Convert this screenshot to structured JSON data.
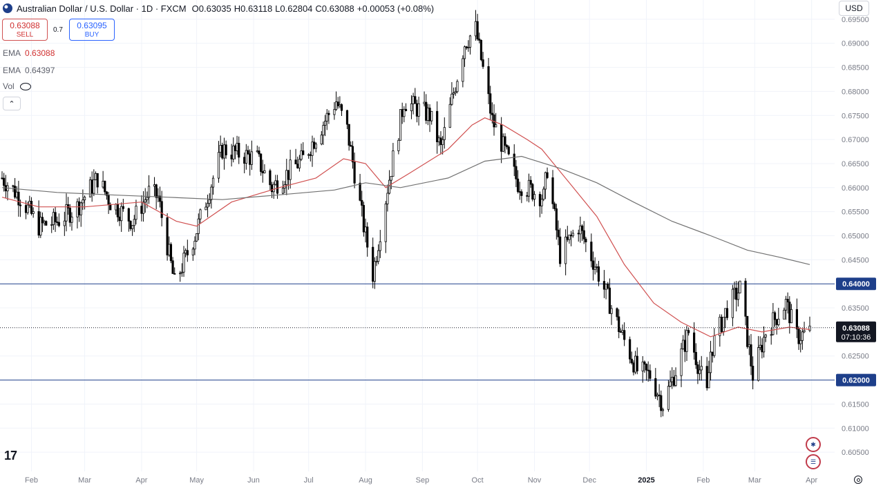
{
  "header": {
    "title": "Australian Dollar / U.S. Dollar · 1D · FXCM",
    "open_label": "O",
    "open": "0.63035",
    "high_label": "H",
    "high": "0.63118",
    "low_label": "L",
    "low": "0.62804",
    "close_label": "C",
    "close": "0.63088",
    "change": "+0.00053 (+0.08%)"
  },
  "trade": {
    "sell_price": "0.63088",
    "sell_label": "SELL",
    "spread": "0.7",
    "buy_price": "0.63095",
    "buy_label": "BUY"
  },
  "indicators": {
    "ema1_label": "EMA",
    "ema1_value": "0.63088",
    "ema2_label": "EMA",
    "ema2_value": "0.64397",
    "vol_label": "Vol"
  },
  "currency_button": "USD",
  "colors": {
    "candle": "#000000",
    "ema_fast": "#d05050",
    "ema_slow": "#707070",
    "hline": "#1e3f8a",
    "grid": "#f0f3fa",
    "axis_text": "#787b86",
    "label_bg": "#1e3f8a",
    "last_bg": "#131722"
  },
  "icons": [
    "tradingview-logo-icon",
    "settings-gear-icon",
    "au-flag-icon",
    "us-flag-icon",
    "eye-off-icon",
    "collapse-chevron-icon"
  ],
  "chart_data": {
    "type": "candlestick",
    "x_range": [
      "2024-01-16",
      "2025-03-31"
    ],
    "x_ticks": [
      {
        "date": "2024-02-01",
        "label": "Feb"
      },
      {
        "date": "2024-03-01",
        "label": "Mar"
      },
      {
        "date": "2024-04-01",
        "label": "Apr"
      },
      {
        "date": "2024-05-01",
        "label": "May"
      },
      {
        "date": "2024-06-01",
        "label": "Jun"
      },
      {
        "date": "2024-07-01",
        "label": "Jul"
      },
      {
        "date": "2024-08-01",
        "label": "Aug"
      },
      {
        "date": "2024-09-01",
        "label": "Sep"
      },
      {
        "date": "2024-10-01",
        "label": "Oct"
      },
      {
        "date": "2024-11-01",
        "label": "Nov"
      },
      {
        "date": "2024-12-01",
        "label": "Dec"
      },
      {
        "date": "2025-01-01",
        "label": "2025"
      },
      {
        "date": "2025-02-01",
        "label": "Feb"
      },
      {
        "date": "2025-03-01",
        "label": "Mar"
      },
      {
        "date": "2025-04-01",
        "label": "Apr"
      }
    ],
    "ylim": [
      0.601,
      0.699
    ],
    "y_ticks": [
      "0.69500",
      "0.69000",
      "0.68500",
      "0.68000",
      "0.67500",
      "0.67000",
      "0.66500",
      "0.66000",
      "0.65500",
      "0.65000",
      "0.64500",
      "0.63500",
      "0.62500",
      "0.61500",
      "0.61000",
      "0.60500"
    ],
    "horizontal_lines": [
      {
        "value": 0.64,
        "label": "0.64000"
      },
      {
        "value": 0.62,
        "label": "0.62000"
      }
    ],
    "last_price": {
      "value": 0.63088,
      "label": "0.63088",
      "countdown": "07:10:36"
    },
    "price_path": [
      [
        "2024-01-16",
        0.662
      ],
      [
        "2024-01-26",
        0.658
      ],
      [
        "2024-02-05",
        0.652
      ],
      [
        "2024-02-15",
        0.653
      ],
      [
        "2024-02-26",
        0.656
      ],
      [
        "2024-03-08",
        0.662
      ],
      [
        "2024-03-15",
        0.657
      ],
      [
        "2024-03-27",
        0.653
      ],
      [
        "2024-04-05",
        0.659
      ],
      [
        "2024-04-10",
        0.658
      ],
      [
        "2024-04-19",
        0.64
      ],
      [
        "2024-04-30",
        0.65
      ],
      [
        "2024-05-15",
        0.668
      ],
      [
        "2024-06-03",
        0.666
      ],
      [
        "2024-06-11",
        0.66
      ],
      [
        "2024-06-28",
        0.666
      ],
      [
        "2024-07-10",
        0.674
      ],
      [
        "2024-07-16",
        0.678
      ],
      [
        "2024-07-22",
        0.672
      ],
      [
        "2024-07-31",
        0.652
      ],
      [
        "2024-08-05",
        0.642
      ],
      [
        "2024-08-13",
        0.66
      ],
      [
        "2024-08-22",
        0.678
      ],
      [
        "2024-09-05",
        0.675
      ],
      [
        "2024-09-11",
        0.668
      ],
      [
        "2024-09-24",
        0.69
      ],
      [
        "2024-09-30",
        0.693
      ],
      [
        "2024-10-09",
        0.674
      ],
      [
        "2024-10-23",
        0.661
      ],
      [
        "2024-11-06",
        0.658
      ],
      [
        "2024-11-08",
        0.664
      ],
      [
        "2024-11-15",
        0.646
      ],
      [
        "2024-11-25",
        0.652
      ],
      [
        "2024-12-05",
        0.643
      ],
      [
        "2024-12-18",
        0.63
      ],
      [
        "2024-12-27",
        0.622
      ],
      [
        "2025-01-03",
        0.621
      ],
      [
        "2025-01-10",
        0.615
      ],
      [
        "2025-01-17",
        0.622
      ],
      [
        "2025-01-24",
        0.63
      ],
      [
        "2025-02-03",
        0.617
      ],
      [
        "2025-02-05",
        0.626
      ],
      [
        "2025-02-14",
        0.635
      ],
      [
        "2025-02-21",
        0.639
      ],
      [
        "2025-02-28",
        0.621
      ],
      [
        "2025-03-07",
        0.63
      ],
      [
        "2025-03-18",
        0.636
      ],
      [
        "2025-03-24",
        0.629
      ],
      [
        "2025-03-31",
        0.63
      ]
    ],
    "series": [
      {
        "name": "EMA 0.63088",
        "points": [
          [
            "2024-01-16",
            0.658
          ],
          [
            "2024-02-05",
            0.656
          ],
          [
            "2024-03-01",
            0.656
          ],
          [
            "2024-04-01",
            0.657
          ],
          [
            "2024-04-20",
            0.653
          ],
          [
            "2024-05-01",
            0.652
          ],
          [
            "2024-05-20",
            0.657
          ],
          [
            "2024-06-15",
            0.66
          ],
          [
            "2024-07-05",
            0.662
          ],
          [
            "2024-07-20",
            0.666
          ],
          [
            "2024-08-01",
            0.665
          ],
          [
            "2024-08-12",
            0.66
          ],
          [
            "2024-08-25",
            0.663
          ],
          [
            "2024-09-15",
            0.668
          ],
          [
            "2024-09-28",
            0.673
          ],
          [
            "2024-10-05",
            0.6745
          ],
          [
            "2024-10-15",
            0.673
          ],
          [
            "2024-10-28",
            0.67
          ],
          [
            "2024-11-05",
            0.668
          ],
          [
            "2024-11-20",
            0.661
          ],
          [
            "2024-12-05",
            0.654
          ],
          [
            "2024-12-20",
            0.644
          ],
          [
            "2025-01-05",
            0.636
          ],
          [
            "2025-01-20",
            0.632
          ],
          [
            "2025-02-05",
            0.629
          ],
          [
            "2025-02-20",
            0.631
          ],
          [
            "2025-03-05",
            0.63
          ],
          [
            "2025-03-20",
            0.631
          ],
          [
            "2025-03-31",
            0.6305
          ]
        ]
      },
      {
        "name": "EMA 0.64397",
        "points": [
          [
            "2024-01-16",
            0.66
          ],
          [
            "2024-02-15",
            0.659
          ],
          [
            "2024-03-15",
            0.6585
          ],
          [
            "2024-04-15",
            0.658
          ],
          [
            "2024-05-15",
            0.6575
          ],
          [
            "2024-06-15",
            0.6585
          ],
          [
            "2024-07-15",
            0.6595
          ],
          [
            "2024-08-01",
            0.661
          ],
          [
            "2024-08-20",
            0.66
          ],
          [
            "2024-09-15",
            0.662
          ],
          [
            "2024-10-05",
            0.6655
          ],
          [
            "2024-10-25",
            0.6665
          ],
          [
            "2024-11-15",
            0.664
          ],
          [
            "2024-12-05",
            0.661
          ],
          [
            "2024-12-25",
            0.657
          ],
          [
            "2025-01-15",
            0.653
          ],
          [
            "2025-02-05",
            0.65
          ],
          [
            "2025-02-25",
            0.647
          ],
          [
            "2025-03-15",
            0.6455
          ],
          [
            "2025-03-31",
            0.644
          ]
        ]
      }
    ]
  }
}
